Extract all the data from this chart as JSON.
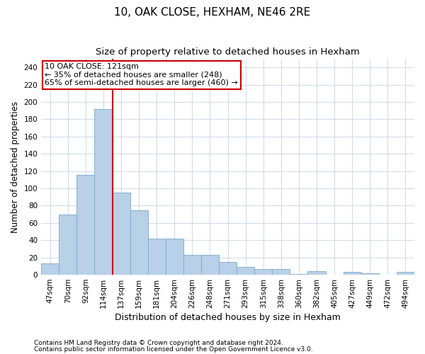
{
  "title1": "10, OAK CLOSE, HEXHAM, NE46 2RE",
  "title2": "Size of property relative to detached houses in Hexham",
  "xlabel": "Distribution of detached houses by size in Hexham",
  "ylabel": "Number of detached properties",
  "bar_color": "#b8d0e8",
  "bar_edge_color": "#7aaac8",
  "grid_color": "#d0dce8",
  "vline_color": "#cc0000",
  "annotation_box_color": "#cc0000",
  "annotation_line1": "10 OAK CLOSE: 121sqm",
  "annotation_line2": "← 35% of detached houses are smaller (248)",
  "annotation_line3": "65% of semi-detached houses are larger (460) →",
  "vline_x_index": 3.5,
  "categories": [
    "47sqm",
    "70sqm",
    "92sqm",
    "114sqm",
    "137sqm",
    "159sqm",
    "181sqm",
    "204sqm",
    "226sqm",
    "248sqm",
    "271sqm",
    "293sqm",
    "315sqm",
    "338sqm",
    "360sqm",
    "382sqm",
    "405sqm",
    "427sqm",
    "449sqm",
    "472sqm",
    "494sqm"
  ],
  "values": [
    13,
    70,
    116,
    192,
    95,
    75,
    42,
    42,
    23,
    23,
    15,
    9,
    7,
    7,
    1,
    4,
    0,
    3,
    2,
    0,
    3
  ],
  "ylim": [
    0,
    250
  ],
  "yticks": [
    0,
    20,
    40,
    60,
    80,
    100,
    120,
    140,
    160,
    180,
    200,
    220,
    240
  ],
  "footnote1": "Contains HM Land Registry data © Crown copyright and database right 2024.",
  "footnote2": "Contains public sector information licensed under the Open Government Licence v3.0.",
  "title1_fontsize": 11,
  "title2_fontsize": 9.5,
  "xlabel_fontsize": 9,
  "ylabel_fontsize": 8.5,
  "tick_fontsize": 7.5,
  "annotation_fontsize": 8,
  "footnote_fontsize": 6.5
}
